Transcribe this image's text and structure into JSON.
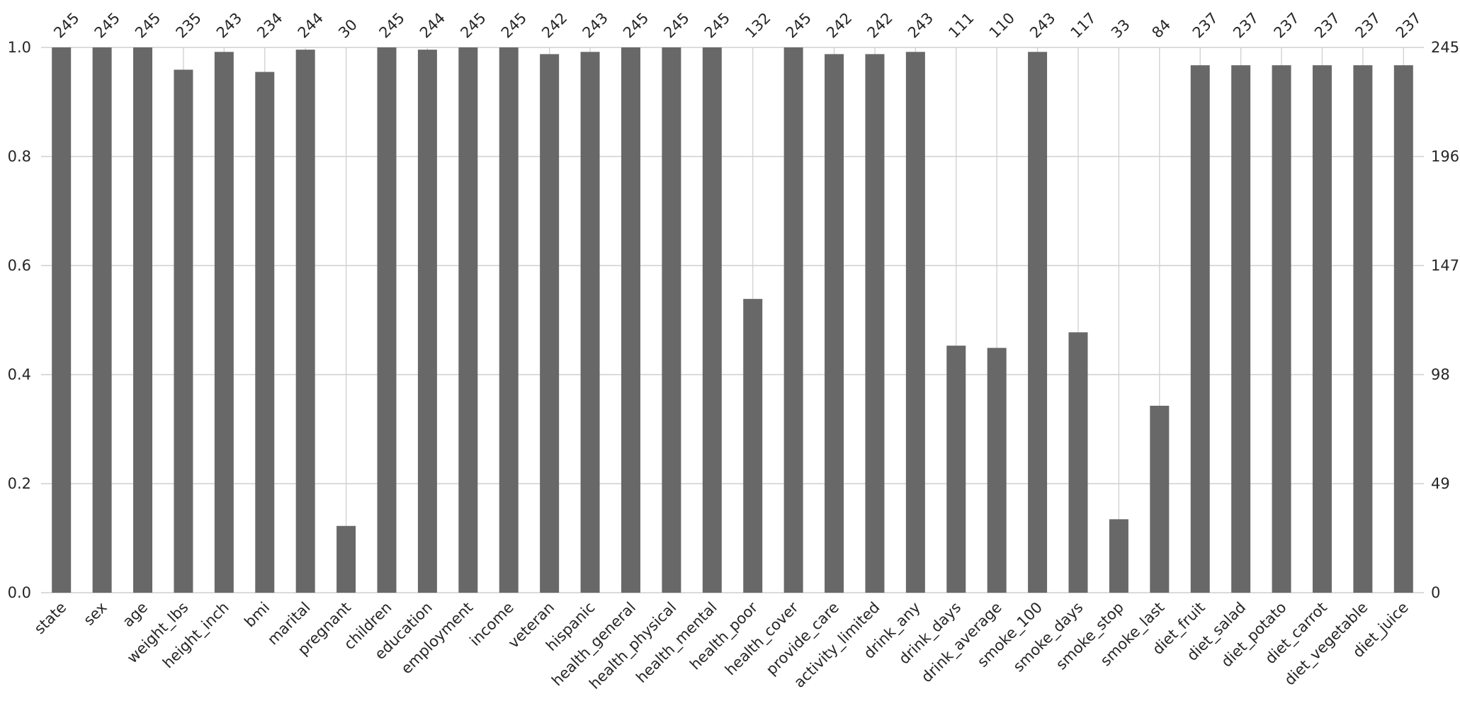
{
  "chart_data": {
    "type": "bar",
    "categories": [
      "state",
      "sex",
      "age",
      "weight_lbs",
      "height_inch",
      "bmi",
      "marital",
      "pregnant",
      "children",
      "education",
      "employment",
      "income",
      "veteran",
      "hispanic",
      "health_general",
      "health_physical",
      "health_mental",
      "health_poor",
      "health_cover",
      "provide_care",
      "activity_limited",
      "drink_any",
      "drink_days",
      "drink_average",
      "smoke_100",
      "smoke_days",
      "smoke_stop",
      "smoke_last",
      "diet_fruit",
      "diet_salad",
      "diet_potato",
      "diet_carrot",
      "diet_vegetable",
      "diet_juice"
    ],
    "counts": [
      245,
      245,
      245,
      235,
      243,
      234,
      244,
      30,
      245,
      244,
      245,
      245,
      242,
      243,
      245,
      245,
      245,
      132,
      245,
      242,
      242,
      243,
      111,
      110,
      243,
      117,
      33,
      84,
      237,
      237,
      237,
      237,
      237,
      237
    ],
    "total": 245,
    "ylim": [
      0,
      1.0
    ],
    "left_ticks": [
      "0.0",
      "0.2",
      "0.4",
      "0.6",
      "0.8",
      "1.0"
    ],
    "right_ticks": [
      "0",
      "49",
      "98",
      "147",
      "196",
      "245"
    ],
    "grid": true,
    "bar_color": "#686868"
  }
}
